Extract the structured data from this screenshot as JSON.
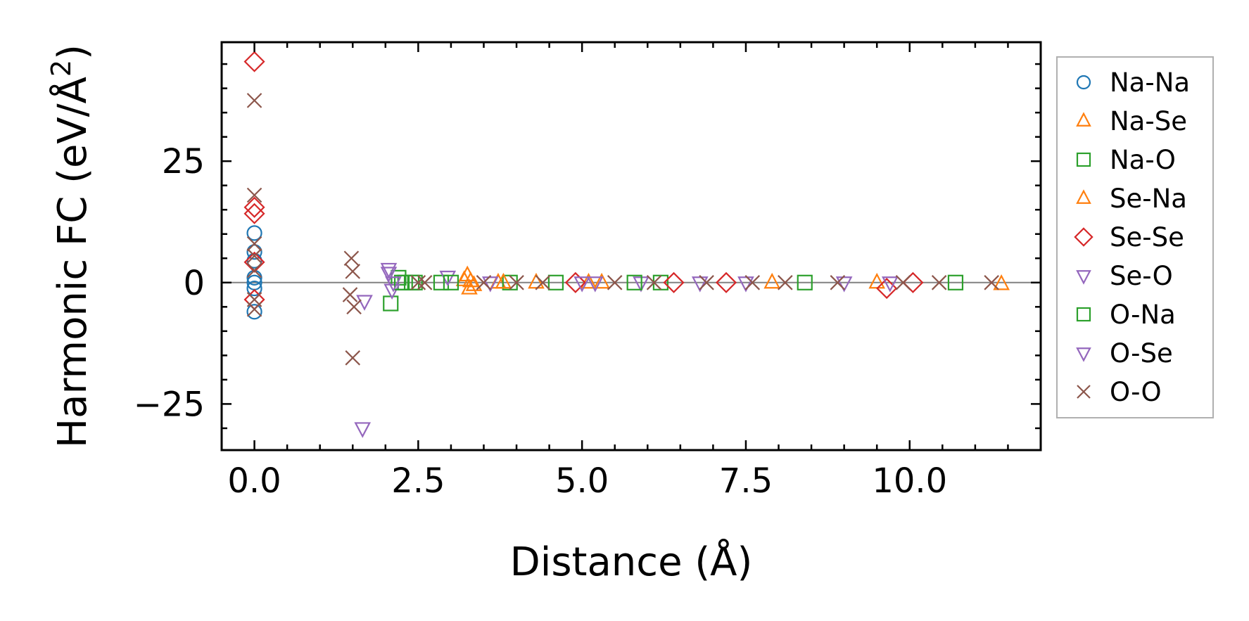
{
  "chart_data": {
    "type": "scatter",
    "xlabel": "Distance (Å)",
    "ylabel_main": "Harmonic FC (eV/Å",
    "ylabel_sup": "2",
    "ylabel_close": ")",
    "xlim": [
      -0.5,
      12.0
    ],
    "ylim": [
      -34.5,
      49.5
    ],
    "xticks": [
      0.0,
      2.5,
      5.0,
      7.5,
      10.0
    ],
    "xtick_labels": [
      "0.0",
      "2.5",
      "5.0",
      "7.5",
      "10.0"
    ],
    "yticks": [
      -25,
      0,
      25
    ],
    "ytick_labels": [
      "−25",
      "0",
      "25"
    ],
    "reference_line_y": 0,
    "legend_position": "outside-right",
    "series": [
      {
        "name": "Na-Na",
        "marker": "circle",
        "color": "#1f77b4",
        "x": [
          0,
          0,
          0,
          0,
          0,
          0,
          0
        ],
        "y": [
          10.2,
          6.3,
          4.5,
          1.0,
          0.0,
          -1.2,
          -6.0
        ]
      },
      {
        "name": "Na-Se",
        "marker": "triangle-up",
        "color": "#ff7f0e",
        "x": [
          3.25,
          3.3,
          3.28,
          3.72,
          4.3,
          5.1,
          7.9,
          9.5,
          11.4
        ],
        "y": [
          1.5,
          0.3,
          -1.2,
          0.0,
          0.0,
          0.0,
          0.0,
          0.0,
          -0.3
        ]
      },
      {
        "name": "Na-O",
        "marker": "square",
        "color": "#2ca02c",
        "x": [
          2.08,
          2.2,
          2.3,
          2.45,
          2.85,
          3.9,
          4.6,
          6.2,
          8.4,
          10.7
        ],
        "y": [
          -4.3,
          1.0,
          0.0,
          0.0,
          0.0,
          0.0,
          0.0,
          0.0,
          0.0,
          0.0
        ]
      },
      {
        "name": "Se-Na",
        "marker": "triangle-up",
        "color": "#ff7f0e",
        "x": [
          3.2,
          3.35,
          3.8,
          5.3
        ],
        "y": [
          0.5,
          -0.5,
          0.0,
          0.0
        ]
      },
      {
        "name": "Se-Se",
        "marker": "diamond",
        "color": "#d62728",
        "x": [
          0,
          0,
          0,
          0,
          0,
          4.9,
          6.4,
          7.2,
          9.65,
          10.05
        ],
        "y": [
          45.5,
          15.5,
          14.2,
          4.2,
          -3.5,
          0.0,
          0.0,
          0.0,
          -1.2,
          0.0
        ]
      },
      {
        "name": "Se-O",
        "marker": "triangle-down",
        "color": "#9467bd",
        "x": [
          1.65,
          1.68,
          2.05,
          2.1,
          2.95,
          5.2,
          5.9,
          6.8,
          7.5,
          9.0,
          9.7
        ],
        "y": [
          -30.0,
          -3.8,
          2.8,
          -1.5,
          1.2,
          0.0,
          0.0,
          0.0,
          0.0,
          0.0,
          0.0
        ]
      },
      {
        "name": "O-Na",
        "marker": "square",
        "color": "#2ca02c",
        "x": [
          2.25,
          2.4,
          3.0,
          5.8
        ],
        "y": [
          0.0,
          0.0,
          0.0,
          0.0
        ]
      },
      {
        "name": "O-Se",
        "marker": "triangle-down",
        "color": "#9467bd",
        "x": [
          2.05,
          2.12,
          3.6,
          5.0
        ],
        "y": [
          2.0,
          0.0,
          0.0,
          0.0
        ]
      },
      {
        "name": "O-O",
        "marker": "x",
        "color": "#8c564b",
        "x": [
          0,
          0,
          0,
          0,
          0,
          0,
          0,
          1.48,
          1.5,
          1.46,
          1.52,
          1.5,
          2.5,
          2.6,
          3.5,
          4.0,
          4.4,
          5.5,
          6.1,
          6.9,
          7.6,
          8.1,
          8.9,
          9.9,
          10.45,
          11.25
        ],
        "y": [
          37.5,
          18.0,
          8.0,
          5.5,
          2.5,
          -3.5,
          -5.5,
          5.0,
          2.3,
          -2.5,
          -5.0,
          -15.5,
          0.0,
          0.0,
          0.0,
          0.0,
          0.0,
          0.0,
          0.0,
          0.0,
          0.0,
          0.0,
          0.0,
          0.0,
          0.0,
          0.0
        ]
      }
    ]
  }
}
